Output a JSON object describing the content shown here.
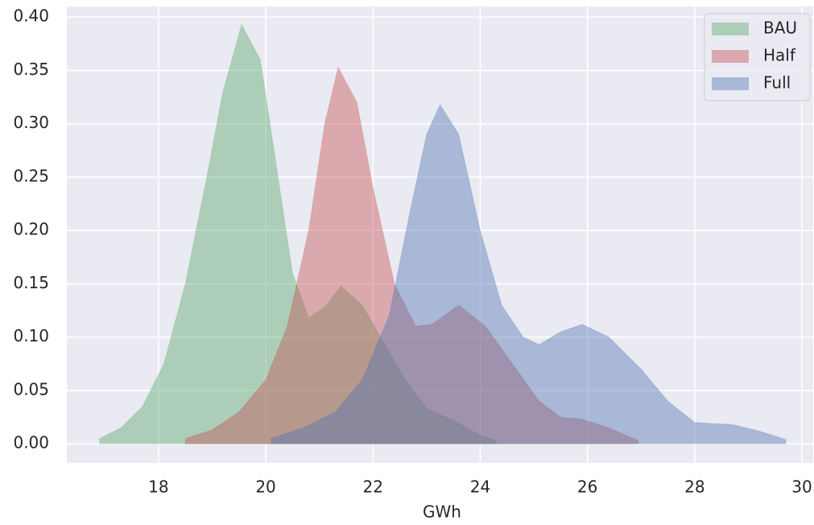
{
  "chart_data": {
    "type": "area",
    "xlabel": "GWh",
    "series": [
      {
        "name": "BAU",
        "color": "#55a868",
        "x": [
          16.9,
          17.3,
          17.7,
          18.1,
          18.5,
          18.9,
          19.2,
          19.55,
          19.9,
          20.2,
          20.5,
          20.8,
          21.1,
          21.4,
          21.8,
          22.2,
          22.6,
          23.0,
          23.5,
          24.0,
          24.3
        ],
        "values": [
          0.005,
          0.015,
          0.035,
          0.075,
          0.15,
          0.25,
          0.33,
          0.393,
          0.36,
          0.26,
          0.16,
          0.118,
          0.128,
          0.148,
          0.13,
          0.095,
          0.06,
          0.033,
          0.022,
          0.008,
          0.003
        ]
      },
      {
        "name": "Half",
        "color": "#c44e52",
        "x": [
          18.5,
          19,
          19.5,
          20,
          20.4,
          20.8,
          21.1,
          21.35,
          21.7,
          22.0,
          22.4,
          22.8,
          23.1,
          23.6,
          24.1,
          24.6,
          25.1,
          25.5,
          25.9,
          26.4,
          26.95
        ],
        "values": [
          0.005,
          0.013,
          0.03,
          0.06,
          0.11,
          0.2,
          0.3,
          0.353,
          0.32,
          0.24,
          0.15,
          0.11,
          0.112,
          0.13,
          0.11,
          0.075,
          0.04,
          0.025,
          0.023,
          0.015,
          0.003
        ]
      },
      {
        "name": "Full",
        "color": "#4c72b0",
        "x": [
          20.1,
          20.7,
          21.3,
          21.8,
          22.3,
          22.7,
          23.0,
          23.25,
          23.6,
          24.0,
          24.4,
          24.8,
          25.1,
          25.5,
          25.9,
          26.4,
          27.0,
          27.5,
          28.0,
          28.7,
          29.2,
          29.7
        ],
        "values": [
          0.005,
          0.015,
          0.03,
          0.06,
          0.12,
          0.22,
          0.29,
          0.318,
          0.29,
          0.2,
          0.13,
          0.1,
          0.093,
          0.105,
          0.112,
          0.1,
          0.07,
          0.04,
          0.02,
          0.018,
          0.012,
          0.004
        ]
      }
    ],
    "xlim": [
      16.29,
      30.21
    ],
    "xticks": [
      18,
      20,
      22,
      24,
      26,
      28,
      30
    ],
    "ylim": [
      -0.018,
      0.41
    ],
    "yticks": [
      {
        "value": 0,
        "label": "0.00"
      },
      {
        "value": 0.05,
        "label": "0.05"
      },
      {
        "value": 0.1,
        "label": "0.10"
      },
      {
        "value": 0.15,
        "label": "0.15"
      },
      {
        "value": 0.2,
        "label": "0.20"
      },
      {
        "value": 0.25,
        "label": "0.25"
      },
      {
        "value": 0.3,
        "label": "0.30"
      },
      {
        "value": 0.35,
        "label": "0.35"
      },
      {
        "value": 0.4,
        "label": "0.40"
      }
    ],
    "grid": true,
    "legend": "upper right"
  }
}
